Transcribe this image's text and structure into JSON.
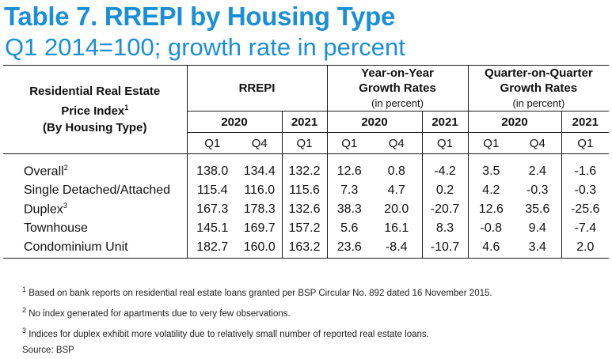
{
  "title": "Table 7. RREPI by Housing Type",
  "subtitle": "Q1 2014=100; growth rate in percent",
  "header": {
    "row_label_line1": "Residential Real Estate",
    "row_label_line2": "Price Index",
    "row_label_sup": "1",
    "row_label_line3": "(By Housing Type)",
    "rrepi": "RREPI",
    "yoy_line1": "Year-on-Year",
    "yoy_line2": "Growth Rates",
    "yoy_sub": "(in percent)",
    "qoq_line1": "Quarter-on-Quarter",
    "qoq_line2": "Growth Rates",
    "qoq_sub": "(in percent)",
    "year_2020": "2020",
    "year_2021": "2021",
    "q1": "Q1",
    "q4": "Q4"
  },
  "rows": [
    {
      "label": "Overall",
      "sup": "2",
      "values": [
        "138.0",
        "134.4",
        "132.2",
        "12.6",
        "0.8",
        "-4.2",
        "3.5",
        "2.4",
        "-1.6"
      ]
    },
    {
      "label": "Single Detached/Attached",
      "sup": "",
      "values": [
        "115.4",
        "116.0",
        "115.6",
        "7.3",
        "4.7",
        "0.2",
        "4.2",
        "-0.3",
        "-0.3"
      ]
    },
    {
      "label": "Duplex",
      "sup": "3",
      "values": [
        "167.3",
        "178.3",
        "132.6",
        "38.3",
        "20.0",
        "-20.7",
        "12.6",
        "35.6",
        "-25.6"
      ]
    },
    {
      "label": "Townhouse",
      "sup": "",
      "values": [
        "145.1",
        "169.7",
        "157.2",
        "5.6",
        "16.1",
        "8.3",
        "-0.8",
        "9.4",
        "-7.4"
      ]
    },
    {
      "label": "Condominium Unit",
      "sup": "",
      "values": [
        "182.7",
        "160.0",
        "163.2",
        "23.6",
        "-8.4",
        "-10.7",
        "4.6",
        "3.4",
        "2.0"
      ]
    }
  ],
  "notes": [
    {
      "sup": "1",
      "text": "Based on bank reports on residential real estate loans granted per BSP Circular No. 892 dated 16 November 2015."
    },
    {
      "sup": "2",
      "text": "No index generated for apartments due to very few observations."
    },
    {
      "sup": "3",
      "text": "Indices for duplex exhibit more volatility due to relatively small number of reported real estate loans."
    }
  ],
  "source": "Source: BSP"
}
